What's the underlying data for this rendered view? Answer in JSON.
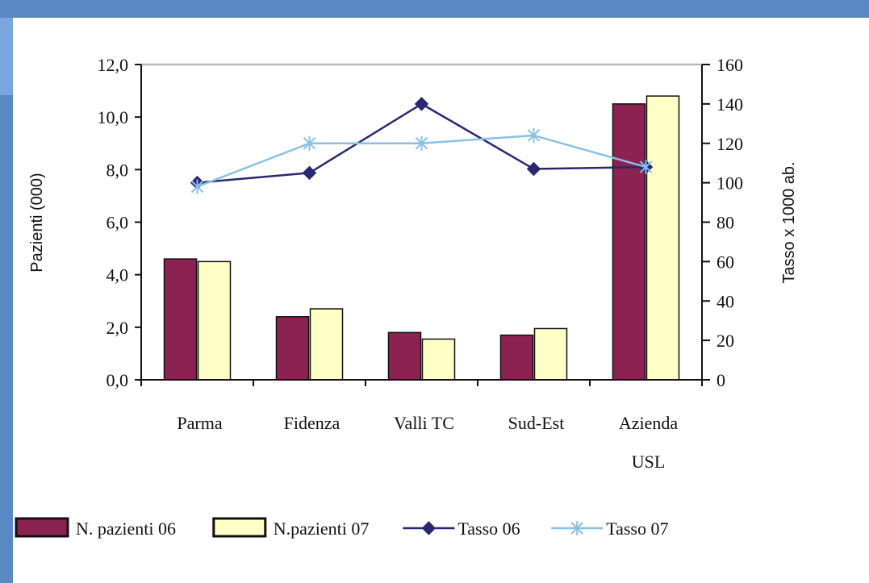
{
  "chart_data": {
    "type": "bar",
    "categories": [
      "Parma",
      "Fidenza",
      "Valli TC",
      "Sud-Est",
      "Azienda USL"
    ],
    "category_lines": [
      [
        "Parma"
      ],
      [
        "Fidenza"
      ],
      [
        "Valli TC"
      ],
      [
        "Sud-Est"
      ],
      [
        "Azienda",
        "USL"
      ]
    ],
    "ylabel": "Pazienti (000)",
    "y2label": "Tasso x 1000 ab.",
    "ylim": [
      0,
      12
    ],
    "y2lim": [
      0,
      160
    ],
    "y_ticks": [
      "0,0",
      "2,0",
      "4,0",
      "6,0",
      "8,0",
      "10,0",
      "12,0"
    ],
    "y2_ticks": [
      "0",
      "20",
      "40",
      "60",
      "80",
      "100",
      "120",
      "140",
      "160"
    ],
    "grid": "horizontal line at top only",
    "legend_position": "bottom",
    "series": [
      {
        "name": "N. pazienti 06",
        "kind": "bar",
        "axis": "left",
        "color": "#8b2252",
        "values": [
          4.6,
          2.4,
          1.8,
          1.7,
          10.5
        ]
      },
      {
        "name": "N.pazienti 07",
        "kind": "bar",
        "axis": "left",
        "color": "#ffffc6",
        "values": [
          4.5,
          2.7,
          1.55,
          1.95,
          10.8
        ]
      },
      {
        "name": "Tasso  06",
        "kind": "line",
        "axis": "right",
        "color": "#2b2670",
        "marker": "diamond",
        "values": [
          100,
          105,
          140,
          107,
          108
        ]
      },
      {
        "name": "Tasso 07",
        "kind": "line",
        "axis": "right",
        "color": "#87c1e6",
        "marker": "x",
        "values": [
          98,
          120,
          120,
          124,
          108
        ]
      }
    ]
  }
}
